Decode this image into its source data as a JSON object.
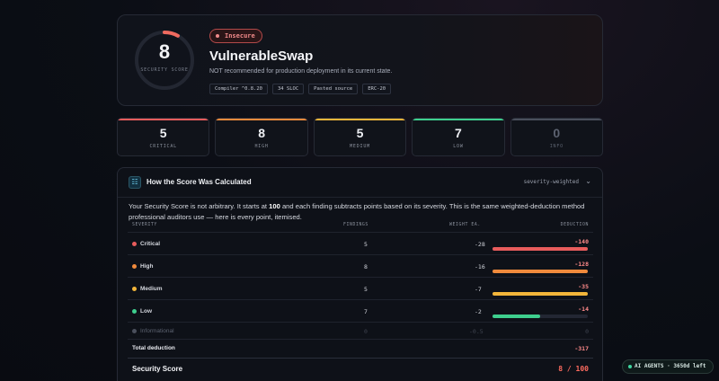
{
  "hero": {
    "score": "8",
    "score_label": "SECURITY SCORE",
    "status_badge": "Insecure",
    "title": "VulnerableSwap",
    "subtitle": "NOT recommended for production deployment in its current state.",
    "chips": [
      "Compiler ^0.8.20",
      "34 SLOC",
      "Pasted source",
      "ERC-20"
    ],
    "score_fraction": 0.08,
    "accent": "#f06a5f"
  },
  "severity_counts": [
    {
      "label": "CRITICAL",
      "count": "5",
      "color": "#e85c5c"
    },
    {
      "label": "HIGH",
      "count": "8",
      "color": "#f08a3c"
    },
    {
      "label": "MEDIUM",
      "count": "5",
      "color": "#f2b53a"
    },
    {
      "label": "LOW",
      "count": "7",
      "color": "#3ecf8e"
    },
    {
      "label": "INFO",
      "count": "0",
      "color": "#4a4f5c"
    }
  ],
  "score_panel": {
    "title": "How the Score Was Calculated",
    "mode": "severity-weighted",
    "description_pre": "Your Security Score is not arbitrary. It starts at ",
    "description_start": "100",
    "description_post": " and each finding subtracts points based on its severity. This is the same weighted-deduction method professional auditors use — here is every point, itemised.",
    "columns": [
      "SEVERITY",
      "FINDINGS",
      "WEIGHT EA.",
      "DEDUCTION"
    ],
    "rows": [
      {
        "severity": "Critical",
        "findings": "5",
        "weight": "-28",
        "deduction": "-140",
        "color": "#e85c5c",
        "bar_fraction": 1.0
      },
      {
        "severity": "High",
        "findings": "8",
        "weight": "-16",
        "deduction": "-128",
        "color": "#f08a3c",
        "bar_fraction": 1.0
      },
      {
        "severity": "Medium",
        "findings": "5",
        "weight": "-7",
        "deduction": "-35",
        "color": "#f2b53a",
        "bar_fraction": 1.0
      },
      {
        "severity": "Low",
        "findings": "7",
        "weight": "-2",
        "deduction": "-14",
        "color": "#3ecf8e",
        "bar_fraction": 0.5
      },
      {
        "severity": "Informational",
        "findings": "0",
        "weight": "-0.5",
        "deduction": "0",
        "color": "#4a4f5c",
        "bar_fraction": 0
      }
    ],
    "total_label": "Total deduction",
    "total_value": "-317",
    "score_label": "Security Score",
    "score_value": "8 / 100"
  },
  "agents_pill": "AI AGENTS · 3650d left"
}
